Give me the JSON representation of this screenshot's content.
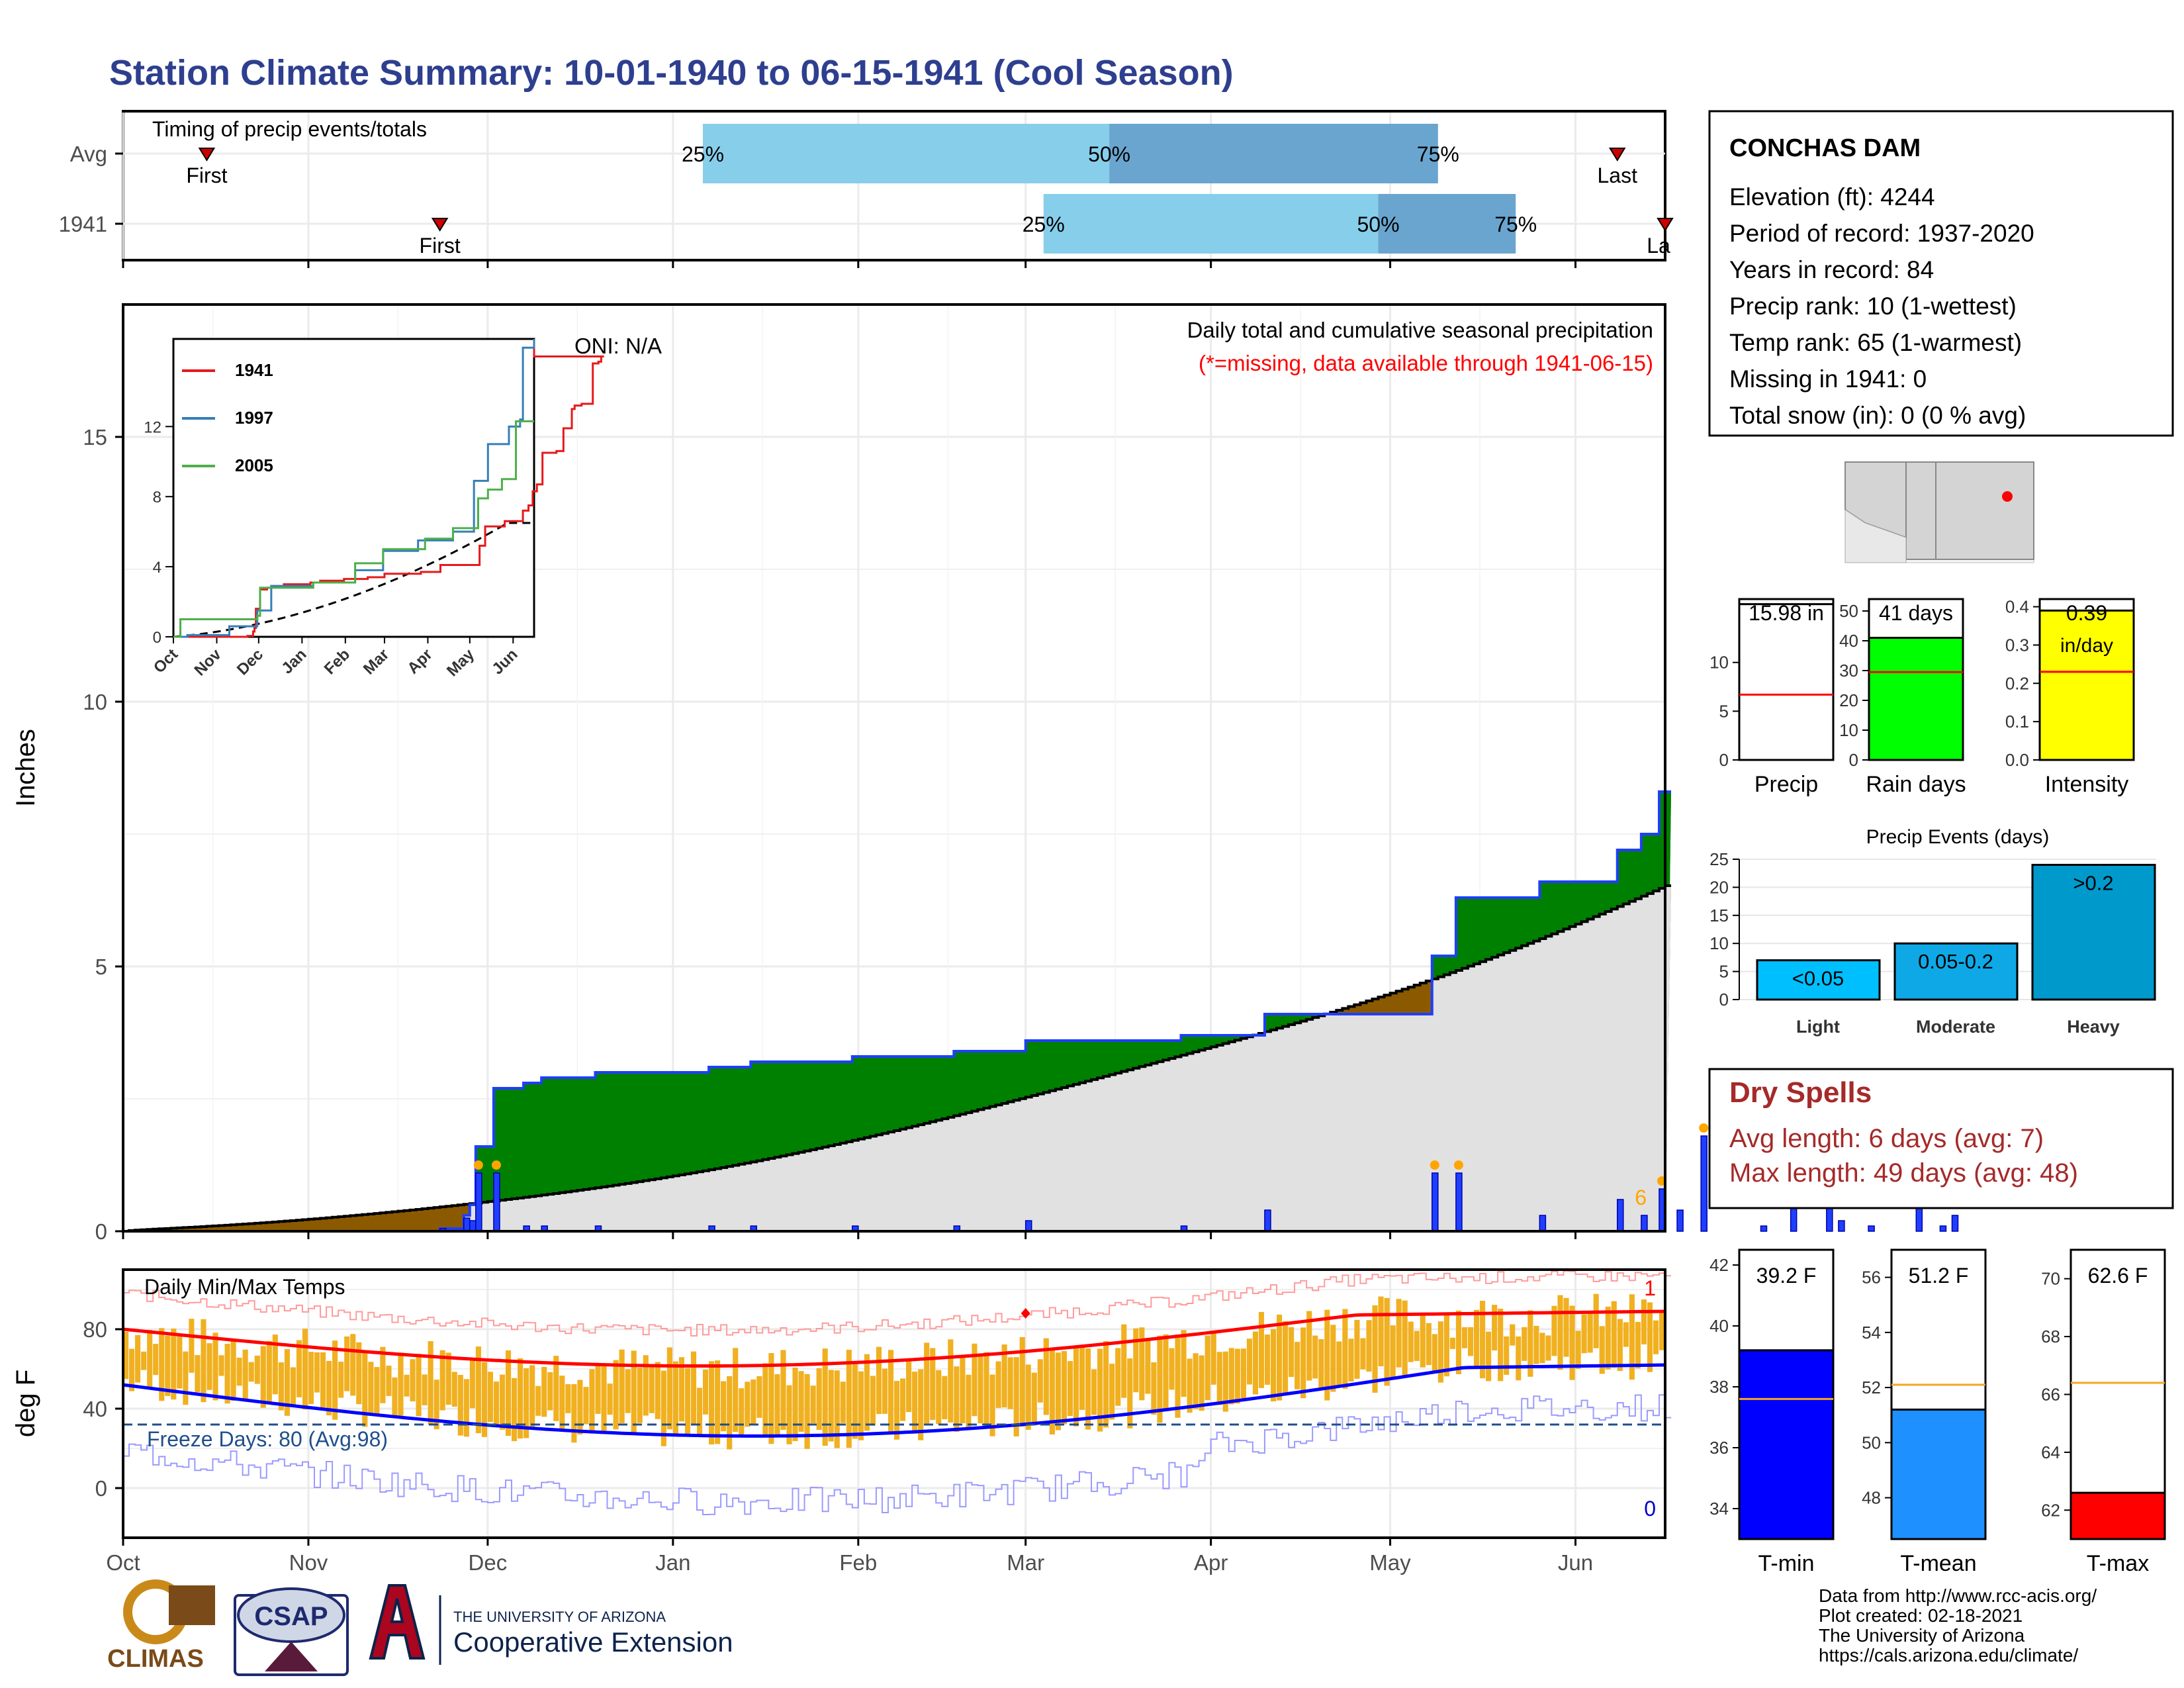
{
  "title": "Station Climate Summary: 10-01-1940 to 06-15-1941 (Cool Season)",
  "colors": {
    "title": "#2e3f8f",
    "cum_current": "#008000",
    "cum_before": "#8b5a00",
    "avg_fill": "#e1e1e1",
    "daily_bar": "#1f3fff",
    "timing_light": "#87ceeb",
    "timing_dark": "#6aa5cf",
    "dry_text": "#a52a2a",
    "temp_bar": "#f0b020"
  },
  "timing_panel": {
    "label": "Timing of precip events/totals",
    "rows": [
      {
        "name": "Avg",
        "first_doy": 14,
        "last_doy": 250,
        "p25": 97,
        "p50": 165,
        "p75": 220,
        "p25_label": "25%",
        "p50_label": "50%",
        "p75_label": "75%",
        "first_label": "First",
        "last_label": "Last"
      },
      {
        "name": "1941",
        "first_doy": 53,
        "last_doy": 258,
        "p25": 154,
        "p50": 210,
        "p75": 233,
        "p25_label": "25%",
        "p50_label": "50%",
        "p75_label": "75%",
        "first_label": "First",
        "last_label": "La"
      }
    ]
  },
  "precip_panel": {
    "ylabel": "Inches",
    "oni": "ONI: N/A",
    "desc": "Daily total and cumulative seasonal precipitation",
    "missing_note": "(*=missing, data available through 1941-06-15)",
    "count_label": "6",
    "yticks": [
      "0",
      "5",
      "10",
      "15"
    ],
    "ymax": 17.5
  },
  "inset": {
    "legend": [
      "1941",
      "1997",
      "2005"
    ],
    "legend_colors": [
      "#e41a1c",
      "#377eb8",
      "#4daf4a"
    ],
    "yticks": [
      "0",
      "4",
      "8",
      "12"
    ],
    "xticks": [
      "Oct",
      "Nov",
      "Dec",
      "Jan",
      "Feb",
      "Mar",
      "Apr",
      "May",
      "Jun"
    ]
  },
  "temp_panel": {
    "label": "Daily Min/Max Temps",
    "ylabel": "deg F",
    "freeze_label": "Freeze Days: 80 (Avg:98)",
    "yticks": [
      "0",
      "40",
      "80"
    ],
    "count_hi": "1",
    "count_lo": "0"
  },
  "x_months": [
    "Oct",
    "Nov",
    "Dec",
    "Jan",
    "Feb",
    "Mar",
    "Apr",
    "May",
    "Jun"
  ],
  "station": {
    "name": "CONCHAS DAM",
    "lines": [
      "Elevation (ft): 4244",
      "Period of record: 1937-2020",
      "Years in record: 84",
      "Precip rank: 10 (1-wettest)",
      "Temp rank: 65 (1-warmest)",
      "Missing in 1941: 0",
      "Total snow (in): 0 (0 % avg)"
    ]
  },
  "summary_bars": [
    {
      "label": "Precip",
      "value_label": "15.98 in",
      "value": 15.98,
      "avg": 6.7,
      "max": 16.5,
      "yticks": [
        "0",
        "5",
        "10"
      ],
      "tickvals": [
        0,
        5,
        10
      ],
      "fill": "#ffffff",
      "line": "#ff0000"
    },
    {
      "label": "Rain days",
      "value_label": "41 days",
      "value": 41,
      "avg": 29.5,
      "max": 54,
      "yticks": [
        "0",
        "10",
        "20",
        "30",
        "40",
        "50"
      ],
      "tickvals": [
        0,
        10,
        20,
        30,
        40,
        50
      ],
      "fill": "#00ff00",
      "line": "#ff0000"
    },
    {
      "label": "Intensity",
      "value_label": "0.39",
      "value_label2": "in/day",
      "value": 0.39,
      "avg": 0.23,
      "max": 0.42,
      "yticks": [
        "0.0",
        "0.1",
        "0.2",
        "0.3",
        "0.4"
      ],
      "tickvals": [
        0,
        0.1,
        0.2,
        0.3,
        0.4
      ],
      "fill": "#ffff00",
      "line": "#ff0000"
    }
  ],
  "events": {
    "title": "Precip Events (days)",
    "categories": [
      "Light",
      "Moderate",
      "Heavy"
    ],
    "labels": [
      "<0.05",
      "0.05-0.2",
      ">0.2"
    ],
    "values": [
      7,
      10,
      24
    ],
    "colors": [
      "#00bfff",
      "#0fa8e6",
      "#0099cc"
    ],
    "yticks": [
      "0",
      "5",
      "10",
      "15",
      "20",
      "25"
    ]
  },
  "dry_spells": {
    "title": "Dry Spells",
    "avg": "Avg length: 6 days (avg: 7)",
    "max": "Max length: 49 days (avg: 48)"
  },
  "temp_bars": [
    {
      "label": "T-min",
      "value_label": "39.2 F",
      "value": 39.2,
      "avg": 37.6,
      "min": 33,
      "max": 42.5,
      "yticks": [
        "34",
        "36",
        "38",
        "40",
        "42"
      ],
      "tickvals": [
        34,
        36,
        38,
        40,
        42
      ],
      "fill": "#0000ff"
    },
    {
      "label": "T-mean",
      "value_label": "51.2 F",
      "value": 51.2,
      "avg": 52.1,
      "min": 46.5,
      "max": 57,
      "yticks": [
        "48",
        "50",
        "52",
        "54",
        "56"
      ],
      "tickvals": [
        48,
        50,
        52,
        54,
        56
      ],
      "fill": "#1e90ff"
    },
    {
      "label": "T-max",
      "value_label": "62.6 F",
      "value": 62.6,
      "avg": 66.4,
      "min": 61,
      "max": 71,
      "yticks": [
        "62",
        "64",
        "66",
        "68",
        "70"
      ],
      "tickvals": [
        62,
        64,
        66,
        68,
        70
      ],
      "fill": "#ff0000"
    }
  ],
  "footer": {
    "credits": [
      "Data from http://www.rcc-acis.org/",
      "Plot created: 02-18-2021",
      "The University of Arizona",
      "https://cals.arizona.edu/climate/"
    ],
    "logo_climas": "CLIMAS",
    "logo_csap": "CSAP",
    "ua_small": "THE UNIVERSITY OF ARIZONA",
    "ua_big": "Cooperative Extension"
  },
  "chart_data": [
    {
      "type": "area",
      "title": "Daily total and cumulative seasonal precipitation",
      "ylabel": "Inches",
      "ylim": [
        0,
        17.5
      ],
      "x_unit": "day of season (0 = Oct 1)",
      "cumulative_1941": [
        [
          0,
          0
        ],
        [
          52,
          0
        ],
        [
          53,
          0.05
        ],
        [
          57,
          0.3
        ],
        [
          58,
          0.5
        ],
        [
          59,
          1.6
        ],
        [
          61,
          1.6
        ],
        [
          62,
          2.7
        ],
        [
          66,
          2.7
        ],
        [
          67,
          2.8
        ],
        [
          69,
          2.8
        ],
        [
          70,
          2.9
        ],
        [
          78,
          2.9
        ],
        [
          79,
          3.0
        ],
        [
          97,
          3.0
        ],
        [
          98,
          3.1
        ],
        [
          104,
          3.1
        ],
        [
          105,
          3.2
        ],
        [
          121,
          3.2
        ],
        [
          122,
          3.3
        ],
        [
          138,
          3.3
        ],
        [
          139,
          3.4
        ],
        [
          150,
          3.4
        ],
        [
          151,
          3.6
        ],
        [
          176,
          3.6
        ],
        [
          177,
          3.7
        ],
        [
          190,
          3.7
        ],
        [
          191,
          4.1
        ],
        [
          218,
          4.1
        ],
        [
          219,
          5.2
        ],
        [
          222,
          5.2
        ],
        [
          223,
          6.3
        ],
        [
          236,
          6.3
        ],
        [
          237,
          6.6
        ],
        [
          249,
          6.6
        ],
        [
          250,
          7.2
        ],
        [
          253,
          7.2
        ],
        [
          254,
          7.5
        ],
        [
          256,
          7.5
        ],
        [
          257,
          8.3
        ],
        [
          259,
          8.3
        ],
        [
          260,
          8.7
        ],
        [
          263,
          8.7
        ],
        [
          264,
          10.5
        ],
        [
          273,
          10.5
        ],
        [
          274,
          10.6
        ],
        [
          278,
          10.6
        ],
        [
          279,
          11.9
        ],
        [
          284,
          11.9
        ],
        [
          285,
          13.0
        ],
        [
          286,
          13.0
        ],
        [
          287,
          13.2
        ],
        [
          291,
          13.2
        ],
        [
          292,
          13.3
        ],
        [
          299,
          13.3
        ],
        [
          300,
          15.6
        ],
        [
          303,
          15.6
        ],
        [
          304,
          15.7
        ],
        [
          305,
          15.7
        ],
        [
          306,
          16.0
        ],
        [
          308,
          16.0
        ]
      ],
      "cumulative_avg_end": 6.5,
      "inset_series": [
        {
          "name": "1941"
        },
        {
          "name": "1997"
        },
        {
          "name": "2005"
        }
      ]
    },
    {
      "type": "line",
      "title": "Daily Min/Max Temps",
      "ylabel": "deg F",
      "ylim": [
        -25,
        110
      ],
      "freeze_line": 32,
      "avg_max_start": 80,
      "avg_max_end": 89,
      "avg_min_start": 52,
      "avg_min_end": 62
    },
    {
      "type": "bar",
      "title": "Precip Events (days)",
      "categories": [
        "Light",
        "Moderate",
        "Heavy"
      ],
      "values": [
        7,
        10,
        24
      ]
    }
  ]
}
